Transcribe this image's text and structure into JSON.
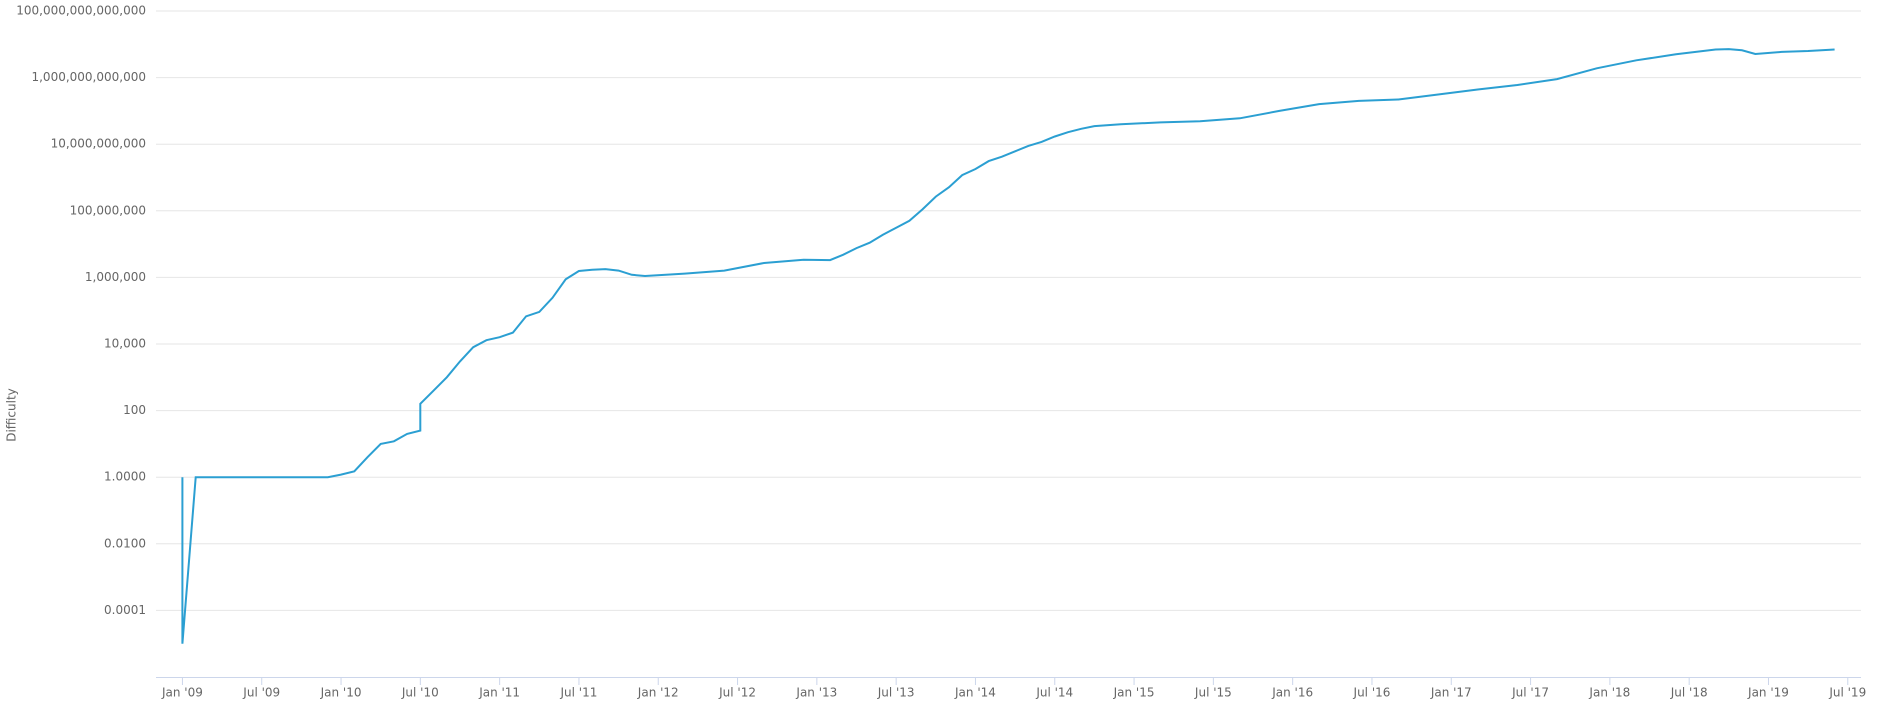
{
  "chart_data": {
    "type": "line",
    "y_label": "Difficulty",
    "log_scale": true,
    "grid": true,
    "xlim": [
      "2008-11",
      "2019-08"
    ],
    "xticks": [
      {
        "value": "2009-01",
        "label": "Jan '09"
      },
      {
        "value": "2009-07",
        "label": "Jul '09"
      },
      {
        "value": "2010-01",
        "label": "Jan '10"
      },
      {
        "value": "2010-07",
        "label": "Jul '10"
      },
      {
        "value": "2011-01",
        "label": "Jan '11"
      },
      {
        "value": "2011-07",
        "label": "Jul '11"
      },
      {
        "value": "2012-01",
        "label": "Jan '12"
      },
      {
        "value": "2012-07",
        "label": "Jul '12"
      },
      {
        "value": "2013-01",
        "label": "Jan '13"
      },
      {
        "value": "2013-07",
        "label": "Jul '13"
      },
      {
        "value": "2014-01",
        "label": "Jan '14"
      },
      {
        "value": "2014-07",
        "label": "Jul '14"
      },
      {
        "value": "2015-01",
        "label": "Jan '15"
      },
      {
        "value": "2015-07",
        "label": "Jul '15"
      },
      {
        "value": "2016-01",
        "label": "Jan '16"
      },
      {
        "value": "2016-07",
        "label": "Jul '16"
      },
      {
        "value": "2017-01",
        "label": "Jan '17"
      },
      {
        "value": "2017-07",
        "label": "Jul '17"
      },
      {
        "value": "2018-01",
        "label": "Jan '18"
      },
      {
        "value": "2018-07",
        "label": "Jul '18"
      },
      {
        "value": "2019-01",
        "label": "Jan '19"
      },
      {
        "value": "2019-07",
        "label": "Jul '19"
      }
    ],
    "ylim": [
      1e-06,
      100000000000000
    ],
    "yticks": [
      0.0001,
      {
        "value": 0.01,
        "label": "0.0100"
      },
      {
        "value": 1,
        "label": "1.0000"
      },
      100,
      {
        "value": 10000,
        "label": "10,000"
      },
      {
        "value": 1000000,
        "label": "1,000,000"
      },
      {
        "value": 100000000,
        "label": "100,000,000"
      },
      {
        "value": 10000000000,
        "label": "10,000,000,000"
      },
      {
        "value": 1000000000000,
        "label": "1,000,000,000,000"
      },
      {
        "value": 100000000000000,
        "label": "100,000,000,000,000"
      }
    ],
    "x": [
      "2009-01",
      "2009-01",
      "2009-02",
      "2009-12",
      "2010-01",
      "2010-02",
      "2010-03",
      "2010-04",
      "2010-05",
      "2010-06",
      "2010-07",
      "2010-07",
      "2010-08",
      "2010-09",
      "2010-10",
      "2010-11",
      "2010-12",
      "2011-01",
      "2011-02",
      "2011-03",
      "2011-04",
      "2011-05",
      "2011-06",
      "2011-07",
      "2011-08",
      "2011-09",
      "2011-10",
      "2011-11",
      "2011-12",
      "2012-03",
      "2012-06",
      "2012-09",
      "2012-12",
      "2013-02",
      "2013-03",
      "2013-04",
      "2013-05",
      "2013-06",
      "2013-07",
      "2013-08",
      "2013-09",
      "2013-10",
      "2013-11",
      "2013-12",
      "2014-01",
      "2014-02",
      "2014-03",
      "2014-04",
      "2014-05",
      "2014-06",
      "2014-07",
      "2014-08",
      "2014-09",
      "2014-10",
      "2014-12",
      "2015-03",
      "2015-06",
      "2015-09",
      "2015-12",
      "2016-03",
      "2016-06",
      "2016-09",
      "2016-12",
      "2017-03",
      "2017-06",
      "2017-09",
      "2017-12",
      "2018-03",
      "2018-06",
      "2018-09",
      "2018-10",
      "2018-11",
      "2018-12",
      "2019-02",
      "2019-04",
      "2019-06"
    ],
    "series": [
      {
        "name": "Difficulty",
        "color": "#2b9fd2",
        "values": [
          1,
          1e-05,
          1,
          1,
          1.2,
          1.5,
          4,
          10,
          12,
          20,
          25,
          160,
          400,
          1000,
          3000,
          8000,
          13000,
          16000,
          22000,
          68000,
          92000,
          244000,
          877000,
          1560000,
          1690000,
          1780000,
          1600000,
          1200000,
          1100000,
          1300000,
          1600000,
          2700000,
          3400000,
          3300000,
          4800000,
          7600000,
          11000000,
          19000000,
          31000000,
          50000000,
          112000000,
          267000000,
          510000000,
          1180000000,
          1800000000,
          3100000000,
          4200000000,
          6100000000,
          8900000000,
          11700000000,
          17000000000,
          23000000000,
          29000000000,
          35000000000,
          40000000000,
          45000000000,
          49000000000,
          60000000000,
          100000000000,
          160000000000,
          200000000000,
          220000000000,
          310000000000,
          440000000000,
          600000000000,
          900000000000,
          1900000000000,
          3300000000000,
          5000000000000,
          7000000000000,
          7200000000000,
          6600000000000,
          5100000000000,
          5900000000000,
          6300000000000,
          7000000000000
        ]
      }
    ]
  }
}
